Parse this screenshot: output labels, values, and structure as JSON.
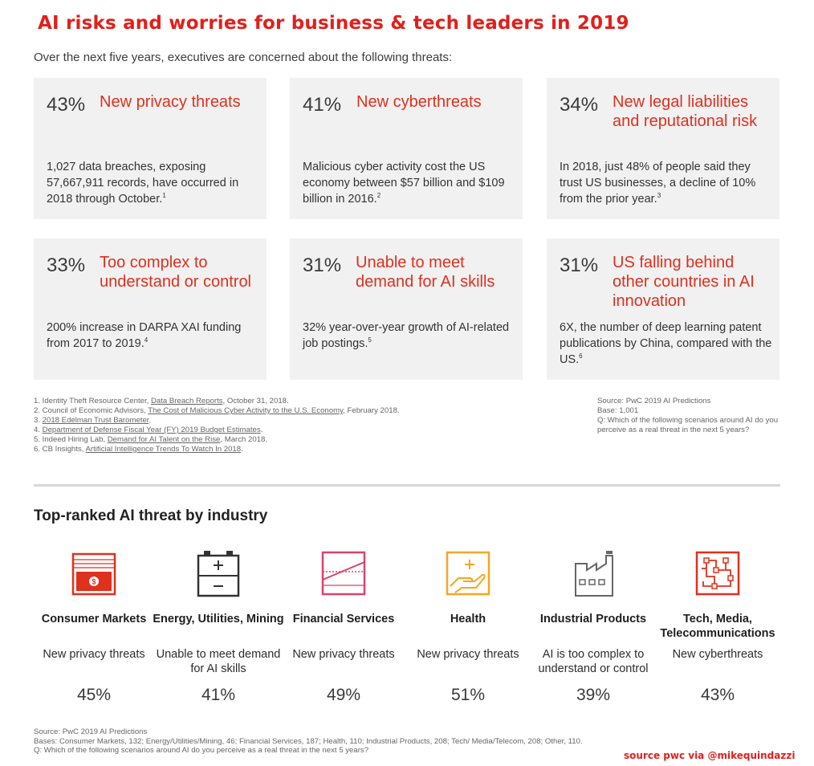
{
  "header": {
    "title": "AI risks and worries for business & tech leaders in 2019",
    "subtitle": "Over the next five years, executives are concerned about the following threats:"
  },
  "threats": [
    {
      "pct": "43%",
      "label": "New privacy threats",
      "desc": "1,027 data breaches, exposing 57,667,911 records, have occurred in 2018 through October.",
      "ref": "1"
    },
    {
      "pct": "41%",
      "label": "New cyberthreats",
      "desc": "Malicious cyber activity cost the US economy between $57 billion and $109 billion in 2016.",
      "ref": "2"
    },
    {
      "pct": "34%",
      "label": "New legal liabilities and reputational risk",
      "desc": "In 2018, just 48% of people said they trust US businesses, a decline of 10% from the prior year.",
      "ref": "3"
    },
    {
      "pct": "33%",
      "label": "Too complex to understand or control",
      "desc": "200% increase in DARPA XAI funding from 2017 to 2019.",
      "ref": "4"
    },
    {
      "pct": "31%",
      "label": "Unable to meet demand for AI skills",
      "desc": "32% year-over-year growth of AI-related job postings.",
      "ref": "5"
    },
    {
      "pct": "31%",
      "label": "US falling behind other countries in AI innovation",
      "desc": "6X, the number of deep learning patent publications by China, compared with the US.",
      "ref": "6"
    }
  ],
  "references": [
    {
      "pre": "1. Identity Theft Resource Center, ",
      "link": "Data Breach Reports",
      "post": ", October 31, 2018."
    },
    {
      "pre": "2. Council of Economic Advisors, ",
      "link": "The Cost of Malicious Cyber Activity to the U.S. Economy",
      "post": ", February 2018."
    },
    {
      "pre": "3. ",
      "link": "2018 Edelman Trust Barometer",
      "post": "."
    },
    {
      "pre": "4. ",
      "link": "Department of Defense Fiscal Year (FY) 2019 Budget Estimates",
      "post": "."
    },
    {
      "pre": "5. Indeed Hiring Lab, ",
      "link": "Demand for AI Talent on the Rise",
      "post": ", March 2018."
    },
    {
      "pre": "6. CB Insights, ",
      "link": "Artificial Intelligence Trends To Watch In 2018",
      "post": "."
    }
  ],
  "source_top": {
    "line1": "Source: PwC 2019 AI Predictions",
    "line2": "Base: 1,001",
    "line3": "Q: Which of the following scenarios around AI do you perceive as a real threat in the next 5 years?"
  },
  "industry_section": {
    "title": "Top-ranked AI threat by industry",
    "industries": [
      {
        "name": "Consumer Markets",
        "threat": "New privacy threats",
        "value": "45%",
        "icon": "money-icon"
      },
      {
        "name": "Energy, Utilities, Mining",
        "threat": "Unable to meet demand for AI skills",
        "value": "41%",
        "icon": "battery-icon"
      },
      {
        "name": "Financial Services",
        "threat": "New privacy threats",
        "value": "49%",
        "icon": "chart-icon"
      },
      {
        "name": "Health",
        "threat": "New privacy threats",
        "value": "51%",
        "icon": "health-hand-icon"
      },
      {
        "name": "Industrial Products",
        "threat": "AI is too complex to understand or control",
        "value": "39%",
        "icon": "factory-icon"
      },
      {
        "name": "Tech, Media, Telecommunications",
        "threat": "New cyberthreats",
        "value": "43%",
        "icon": "circuit-icon"
      }
    ]
  },
  "source_bottom": {
    "line1": "Source: PwC 2019 AI Predictions",
    "line2": "Bases: Consumer Markets, 132; Energy/Utilities/Mining, 46; Financial Services, 187; Health, 110; Industrial Products, 208; Tech/ Media/Telecom, 208; Other, 110.",
    "line3": "Q: Which of the following scenarios around AI do you perceive as a real threat in the next 5 years?"
  },
  "credit": "source pwc via @mikequindazzi",
  "colors": {
    "accent": "#e0301e",
    "health": "#f5a623",
    "financial": "#d9436b",
    "industrial": "#666666"
  }
}
